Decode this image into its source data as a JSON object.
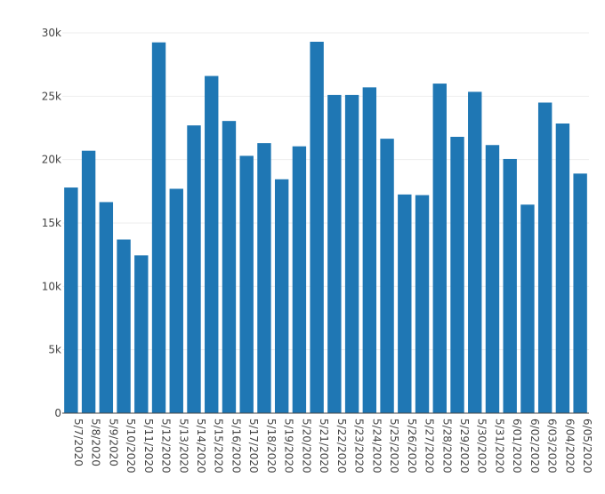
{
  "chart_data": {
    "type": "bar",
    "title": "",
    "xlabel": "",
    "ylabel": "",
    "ylim": [
      0,
      30000
    ],
    "yticks": [
      0,
      5000,
      10000,
      15000,
      20000,
      25000,
      30000
    ],
    "ytick_labels": [
      "0",
      "5k",
      "10k",
      "15k",
      "20k",
      "25k",
      "30k"
    ],
    "grid": true,
    "legend": "none",
    "bar_color": "#1f77b4",
    "categories": [
      "5/7/2020",
      "5/8/2020",
      "5/9/2020",
      "5/10/2020",
      "5/11/2020",
      "5/12/2020",
      "5/13/2020",
      "5/14/2020",
      "5/15/2020",
      "5/16/2020",
      "5/17/2020",
      "5/18/2020",
      "5/19/2020",
      "5/20/2020",
      "5/21/2020",
      "5/22/2020",
      "5/23/2020",
      "5/24/2020",
      "5/25/2020",
      "5/26/2020",
      "5/27/2020",
      "5/28/2020",
      "5/29/2020",
      "5/30/2020",
      "5/31/2020",
      "6/01/2020",
      "6/02/2020",
      "6/03/2020",
      "6/04/2020",
      "6/05/2020"
    ],
    "values": [
      17800,
      20700,
      16650,
      13700,
      12450,
      29250,
      17700,
      22700,
      26600,
      23050,
      20300,
      21300,
      18450,
      21050,
      29300,
      25100,
      25100,
      25700,
      21650,
      17250,
      17200,
      26000,
      21800,
      25350,
      21150,
      20050,
      16450,
      24500,
      22850,
      18900
    ]
  }
}
